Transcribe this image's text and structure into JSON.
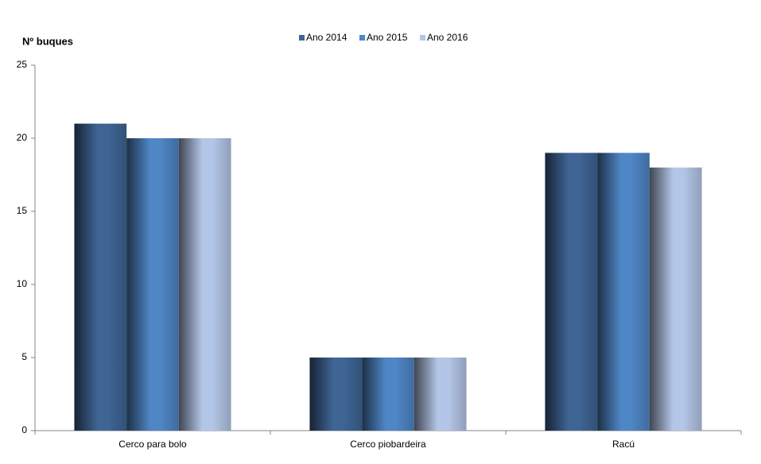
{
  "chart_data": {
    "type": "bar",
    "y_label": "Nº  buques",
    "categories": [
      "Cerco para bolo",
      "Cerco piobardeira",
      "Racú"
    ],
    "series": [
      {
        "name": "Ano 2014",
        "color": "#3f6595",
        "values": [
          21,
          5,
          19
        ]
      },
      {
        "name": "Ano 2015",
        "color": "#4f86c6",
        "values": [
          20,
          5,
          19
        ]
      },
      {
        "name": "Ano 2016",
        "color": "#b4c6e7",
        "values": [
          20,
          5,
          18
        ]
      }
    ],
    "ylim": [
      0,
      25
    ],
    "yticks": [
      0,
      5,
      10,
      15,
      20,
      25
    ],
    "grid": false,
    "legend": "top"
  }
}
